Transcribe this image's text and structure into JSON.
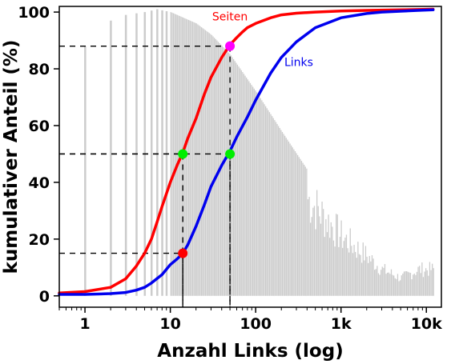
{
  "chart_data": {
    "type": "line",
    "xlabel": "Anzahl Links (log)",
    "ylabel": "kumulativer Anteil (%)",
    "x_scale": "log",
    "xlim": [
      0.5,
      15000
    ],
    "ylim": [
      -4,
      102
    ],
    "x_ticks": [
      {
        "value": 1,
        "label": "1"
      },
      {
        "value": 10,
        "label": "10"
      },
      {
        "value": 100,
        "label": "100"
      },
      {
        "value": 1000,
        "label": "1k"
      },
      {
        "value": 10000,
        "label": "10k"
      }
    ],
    "y_ticks": [
      {
        "value": 0,
        "label": "0"
      },
      {
        "value": 20,
        "label": "20"
      },
      {
        "value": 40,
        "label": "40"
      },
      {
        "value": 60,
        "label": "60"
      },
      {
        "value": 80,
        "label": "80"
      },
      {
        "value": 100,
        "label": "100"
      }
    ],
    "series": [
      {
        "name": "Seiten",
        "color": "#ff0000",
        "x": [
          0.5,
          1,
          2,
          3,
          4,
          5,
          6,
          7,
          8,
          10,
          12,
          14,
          16,
          20,
          25,
          30,
          40,
          50,
          60,
          70,
          80,
          100,
          150,
          200,
          300,
          500,
          1000,
          2000,
          5000,
          12000
        ],
        "y": [
          1.0,
          1.5,
          3.0,
          6.0,
          10.5,
          15.0,
          20.0,
          26.0,
          31.5,
          40.0,
          46.0,
          50.5,
          55.5,
          62.5,
          71.0,
          77.0,
          84.0,
          88.5,
          91.0,
          93.0,
          94.5,
          96.0,
          98.0,
          99.0,
          99.6,
          100.0,
          100.4,
          100.6,
          100.8,
          101.0
        ]
      },
      {
        "name": "Links",
        "color": "#0000ee",
        "x": [
          0.5,
          1,
          2,
          3,
          4,
          5,
          6,
          8,
          10,
          12,
          14,
          16,
          20,
          25,
          30,
          40,
          50,
          60,
          80,
          100,
          150,
          200,
          300,
          500,
          1000,
          2000,
          3000,
          5000,
          8000,
          12000
        ],
        "y": [
          0.5,
          0.5,
          0.8,
          1.2,
          2.0,
          3.0,
          4.5,
          7.5,
          11.0,
          13.0,
          15.0,
          18.0,
          24.5,
          32.0,
          38.5,
          46.0,
          51.0,
          56.0,
          63.0,
          69.0,
          78.5,
          84.0,
          89.5,
          94.5,
          98.0,
          99.5,
          100.0,
          100.3,
          100.6,
          100.8
        ]
      }
    ],
    "markers": [
      {
        "x": 14,
        "y": 15,
        "color": "#ff0000"
      },
      {
        "x": 14,
        "y": 50,
        "color": "#00ee00"
      },
      {
        "x": 50,
        "y": 50,
        "color": "#00ee00"
      },
      {
        "x": 50,
        "y": 88,
        "color": "#ff00ff"
      }
    ],
    "dashed_guides": [
      {
        "x": 14,
        "y": 15
      },
      {
        "x": 14,
        "y": 50
      },
      {
        "x": 50,
        "y": 50
      },
      {
        "x": 50,
        "y": 88
      }
    ],
    "histogram": {
      "description_of_values": "relative frequency of pages by link count, peak near 7 links",
      "color": "#cccccc",
      "peak_x": 7,
      "shape": [
        {
          "x": 1,
          "y": 88
        },
        {
          "x": 2,
          "y": 97
        },
        {
          "x": 3,
          "y": 99
        },
        {
          "x": 5,
          "y": 100
        },
        {
          "x": 7,
          "y": 101
        },
        {
          "x": 10,
          "y": 100
        },
        {
          "x": 20,
          "y": 96
        },
        {
          "x": 30,
          "y": 92
        },
        {
          "x": 50,
          "y": 85
        },
        {
          "x": 100,
          "y": 72
        },
        {
          "x": 200,
          "y": 58
        },
        {
          "x": 500,
          "y": 40
        },
        {
          "x": 1000,
          "y": 27
        },
        {
          "x": 2000,
          "y": 18
        },
        {
          "x": 3000,
          "y": 12
        },
        {
          "x": 5000,
          "y": 8
        },
        {
          "x": 8000,
          "y": 12
        }
      ]
    },
    "annotations": [
      {
        "text": "Seiten",
        "color": "#ff0000",
        "x": 50,
        "y": 97
      },
      {
        "text": "Links",
        "color": "#0000ee",
        "x": 320,
        "y": 81
      }
    ],
    "grid": false,
    "legend": "none"
  }
}
